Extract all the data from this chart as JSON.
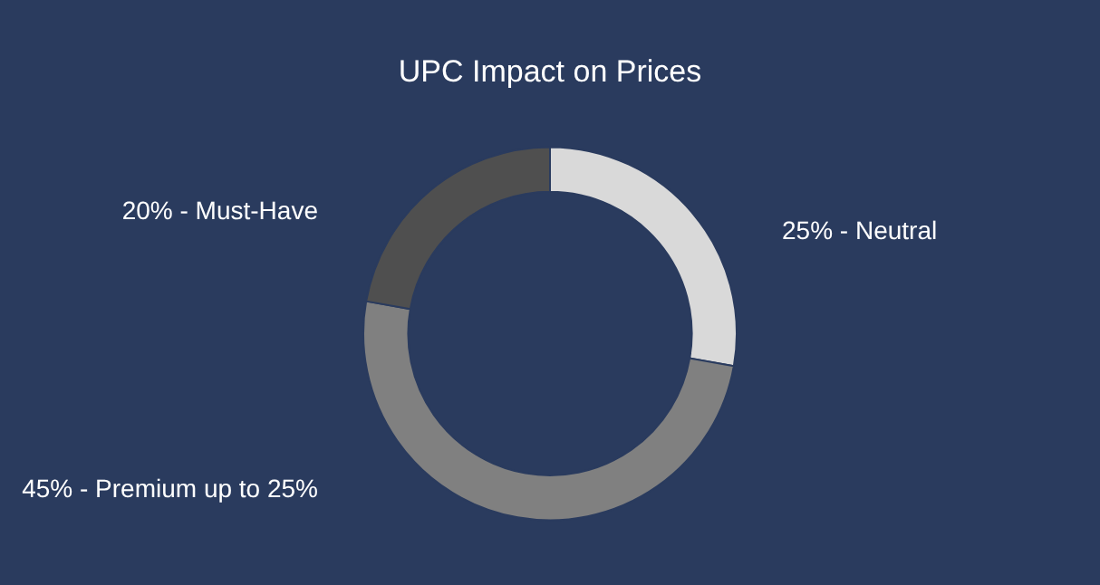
{
  "chart_data": {
    "type": "donut",
    "title": "UPC Impact on Prices",
    "categories": [
      "25% - Neutral",
      "45% - Premium up to 25%",
      "20% - Must-Have"
    ],
    "values": [
      25,
      45,
      20
    ],
    "colors": [
      "#d9d9d9",
      "#808080",
      "#4f4f4f"
    ],
    "legend": false
  }
}
